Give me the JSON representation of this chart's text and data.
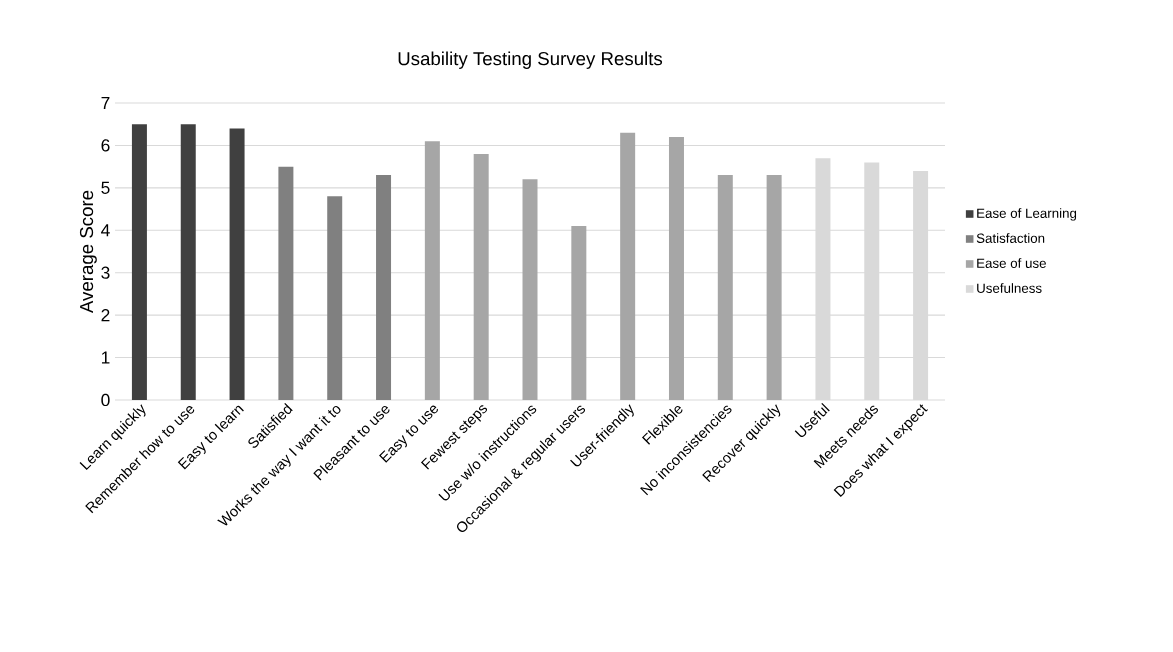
{
  "chart_data": {
    "type": "bar",
    "title": "Usability Testing Survey Results",
    "ylabel": "Average Score",
    "categories": [
      "Learn quickly",
      "Remember how to use",
      "Easy to learn",
      "Satisfied",
      "Works the way I want it to",
      "Pleasant to use",
      "Easy to use",
      "Fewest steps",
      "Use w/o instructions",
      "Occasional & regular users",
      "User-friendly",
      "Flexible",
      "No inconsistencies",
      "Recover quickly",
      "Useful",
      "Meets needs",
      "Does what I expect"
    ],
    "series": [
      {
        "name": "Ease of Learning",
        "color": "#404040",
        "values": [
          6.5,
          6.5,
          6.4,
          null,
          null,
          null,
          null,
          null,
          null,
          null,
          null,
          null,
          null,
          null,
          null,
          null,
          null
        ]
      },
      {
        "name": "Satisfaction",
        "color": "#808080",
        "values": [
          null,
          null,
          null,
          5.5,
          4.8,
          5.3,
          null,
          null,
          null,
          null,
          null,
          null,
          null,
          null,
          null,
          null,
          null
        ]
      },
      {
        "name": "Ease of use",
        "color": "#a6a6a6",
        "values": [
          null,
          null,
          null,
          null,
          null,
          null,
          6.1,
          5.8,
          5.2,
          4.1,
          6.3,
          6.2,
          5.3,
          5.3,
          null,
          null,
          null
        ]
      },
      {
        "name": "Usefulness",
        "color": "#d9d9d9",
        "values": [
          null,
          null,
          null,
          null,
          null,
          null,
          null,
          null,
          null,
          null,
          null,
          null,
          null,
          null,
          5.7,
          5.6,
          5.4
        ]
      }
    ],
    "ylim": [
      0,
      7
    ],
    "yticks": [
      0,
      1,
      2,
      3,
      4,
      5,
      6,
      7
    ],
    "grid": "y",
    "legend": "right"
  }
}
